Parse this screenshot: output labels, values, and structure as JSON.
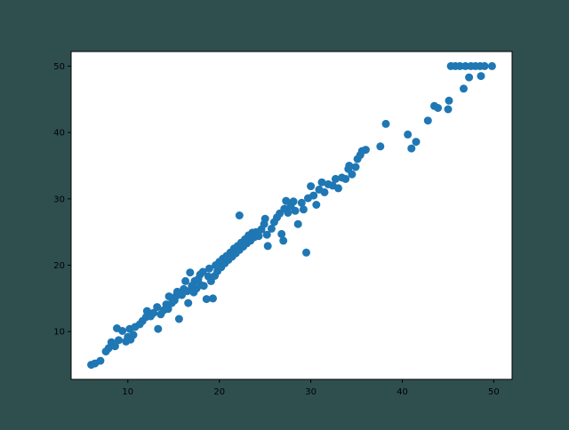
{
  "chart_data": {
    "type": "scatter",
    "title": "",
    "xlabel": "",
    "ylabel": "",
    "xlim": [
      3.8,
      52.0
    ],
    "ylim": [
      2.8,
      52.2
    ],
    "x_ticks": [
      10,
      20,
      30,
      40,
      50
    ],
    "y_ticks": [
      10,
      20,
      30,
      40,
      50
    ],
    "grid": false,
    "legend": "none",
    "colors": {
      "figure_background": "#2f4f4f",
      "plot_background": "#ffffff",
      "marker": "#1f77b4",
      "axis": "#000000"
    },
    "series": [
      {
        "points": [
          [
            6.0,
            5.0
          ],
          [
            6.4,
            5.2
          ],
          [
            7.0,
            5.6
          ],
          [
            7.6,
            7.0
          ],
          [
            7.9,
            7.5
          ],
          [
            8.2,
            8.4
          ],
          [
            8.6,
            7.8
          ],
          [
            9.0,
            8.7
          ],
          [
            8.8,
            10.5
          ],
          [
            9.4,
            10.1
          ],
          [
            9.8,
            8.5
          ],
          [
            10.0,
            9.2
          ],
          [
            10.3,
            8.8
          ],
          [
            10.6,
            9.5
          ],
          [
            10.2,
            10.4
          ],
          [
            10.8,
            10.7
          ],
          [
            11.3,
            11.1
          ],
          [
            11.6,
            11.6
          ],
          [
            12.0,
            12.2
          ],
          [
            12.1,
            13.1
          ],
          [
            12.5,
            12.3
          ],
          [
            12.8,
            12.8
          ],
          [
            13.2,
            13.7
          ],
          [
            13.3,
            10.4
          ],
          [
            13.6,
            12.6
          ],
          [
            13.9,
            13.2
          ],
          [
            14.2,
            14.1
          ],
          [
            14.4,
            13.4
          ],
          [
            14.5,
            15.3
          ],
          [
            14.8,
            14.3
          ],
          [
            15.1,
            14.7
          ],
          [
            15.3,
            15.4
          ],
          [
            15.4,
            16.0
          ],
          [
            15.6,
            11.9
          ],
          [
            15.9,
            15.5
          ],
          [
            16.1,
            16.4
          ],
          [
            16.3,
            17.6
          ],
          [
            16.5,
            16.1
          ],
          [
            16.6,
            14.3
          ],
          [
            16.8,
            18.9
          ],
          [
            17.0,
            16.9
          ],
          [
            17.2,
            15.9
          ],
          [
            17.3,
            17.6
          ],
          [
            17.5,
            16.5
          ],
          [
            17.7,
            17.9
          ],
          [
            17.9,
            18.6
          ],
          [
            18.0,
            17.0
          ],
          [
            18.2,
            19.0
          ],
          [
            18.3,
            16.9
          ],
          [
            18.6,
            14.9
          ],
          [
            18.8,
            18.3
          ],
          [
            18.9,
            19.5
          ],
          [
            19.1,
            17.6
          ],
          [
            19.3,
            15.0
          ],
          [
            19.5,
            18.4
          ],
          [
            19.6,
            20.0
          ],
          [
            19.8,
            19.1
          ],
          [
            20.0,
            20.5
          ],
          [
            20.2,
            19.7
          ],
          [
            20.4,
            21.0
          ],
          [
            20.6,
            20.3
          ],
          [
            20.8,
            21.4
          ],
          [
            21.0,
            20.8
          ],
          [
            21.2,
            21.9
          ],
          [
            21.4,
            21.3
          ],
          [
            21.6,
            22.5
          ],
          [
            21.8,
            21.8
          ],
          [
            22.0,
            22.9
          ],
          [
            22.2,
            22.3
          ],
          [
            22.2,
            27.5
          ],
          [
            22.4,
            23.4
          ],
          [
            22.6,
            22.8
          ],
          [
            22.8,
            23.9
          ],
          [
            23.0,
            23.3
          ],
          [
            23.2,
            24.5
          ],
          [
            23.4,
            23.7
          ],
          [
            23.6,
            24.9
          ],
          [
            23.8,
            24.2
          ],
          [
            24.0,
            25.0
          ],
          [
            24.3,
            24.4
          ],
          [
            24.6,
            25.4
          ],
          [
            24.9,
            26.2
          ],
          [
            25.2,
            24.6
          ],
          [
            25.3,
            22.9
          ],
          [
            25.0,
            27.0
          ],
          [
            25.7,
            25.5
          ],
          [
            26.0,
            26.5
          ],
          [
            26.3,
            27.2
          ],
          [
            26.6,
            27.8
          ],
          [
            26.8,
            24.7
          ],
          [
            27.0,
            23.7
          ],
          [
            27.1,
            28.5
          ],
          [
            27.3,
            29.7
          ],
          [
            27.5,
            27.9
          ],
          [
            27.8,
            28.9
          ],
          [
            28.1,
            29.6
          ],
          [
            28.3,
            28.2
          ],
          [
            28.6,
            26.2
          ],
          [
            29.0,
            29.4
          ],
          [
            29.2,
            28.4
          ],
          [
            29.5,
            21.9
          ],
          [
            29.7,
            30.1
          ],
          [
            30.0,
            31.9
          ],
          [
            30.3,
            30.5
          ],
          [
            30.6,
            29.1
          ],
          [
            30.9,
            31.4
          ],
          [
            31.2,
            32.5
          ],
          [
            31.5,
            31.0
          ],
          [
            31.9,
            32.2
          ],
          [
            32.4,
            32.0
          ],
          [
            32.7,
            33.0
          ],
          [
            33.0,
            31.6
          ],
          [
            33.4,
            33.2
          ],
          [
            33.8,
            33.0
          ],
          [
            34.1,
            34.5
          ],
          [
            34.2,
            35.0
          ],
          [
            34.5,
            33.7
          ],
          [
            34.9,
            34.8
          ],
          [
            35.1,
            36.0
          ],
          [
            35.4,
            36.6
          ],
          [
            35.6,
            37.2
          ],
          [
            36.0,
            37.4
          ],
          [
            37.6,
            37.9
          ],
          [
            38.2,
            41.3
          ],
          [
            40.6,
            39.7
          ],
          [
            41.0,
            37.6
          ],
          [
            41.5,
            38.6
          ],
          [
            42.8,
            41.8
          ],
          [
            43.5,
            44.0
          ],
          [
            43.9,
            43.7
          ],
          [
            45.0,
            43.5
          ],
          [
            45.1,
            44.8
          ],
          [
            45.3,
            50.0
          ],
          [
            45.8,
            50.0
          ],
          [
            46.3,
            50.0
          ],
          [
            46.7,
            46.6
          ],
          [
            46.9,
            50.0
          ],
          [
            47.3,
            48.3
          ],
          [
            47.5,
            50.0
          ],
          [
            48.0,
            50.0
          ],
          [
            48.5,
            50.0
          ],
          [
            48.6,
            48.5
          ],
          [
            49.0,
            50.0
          ],
          [
            49.8,
            50.0
          ]
        ]
      }
    ]
  }
}
